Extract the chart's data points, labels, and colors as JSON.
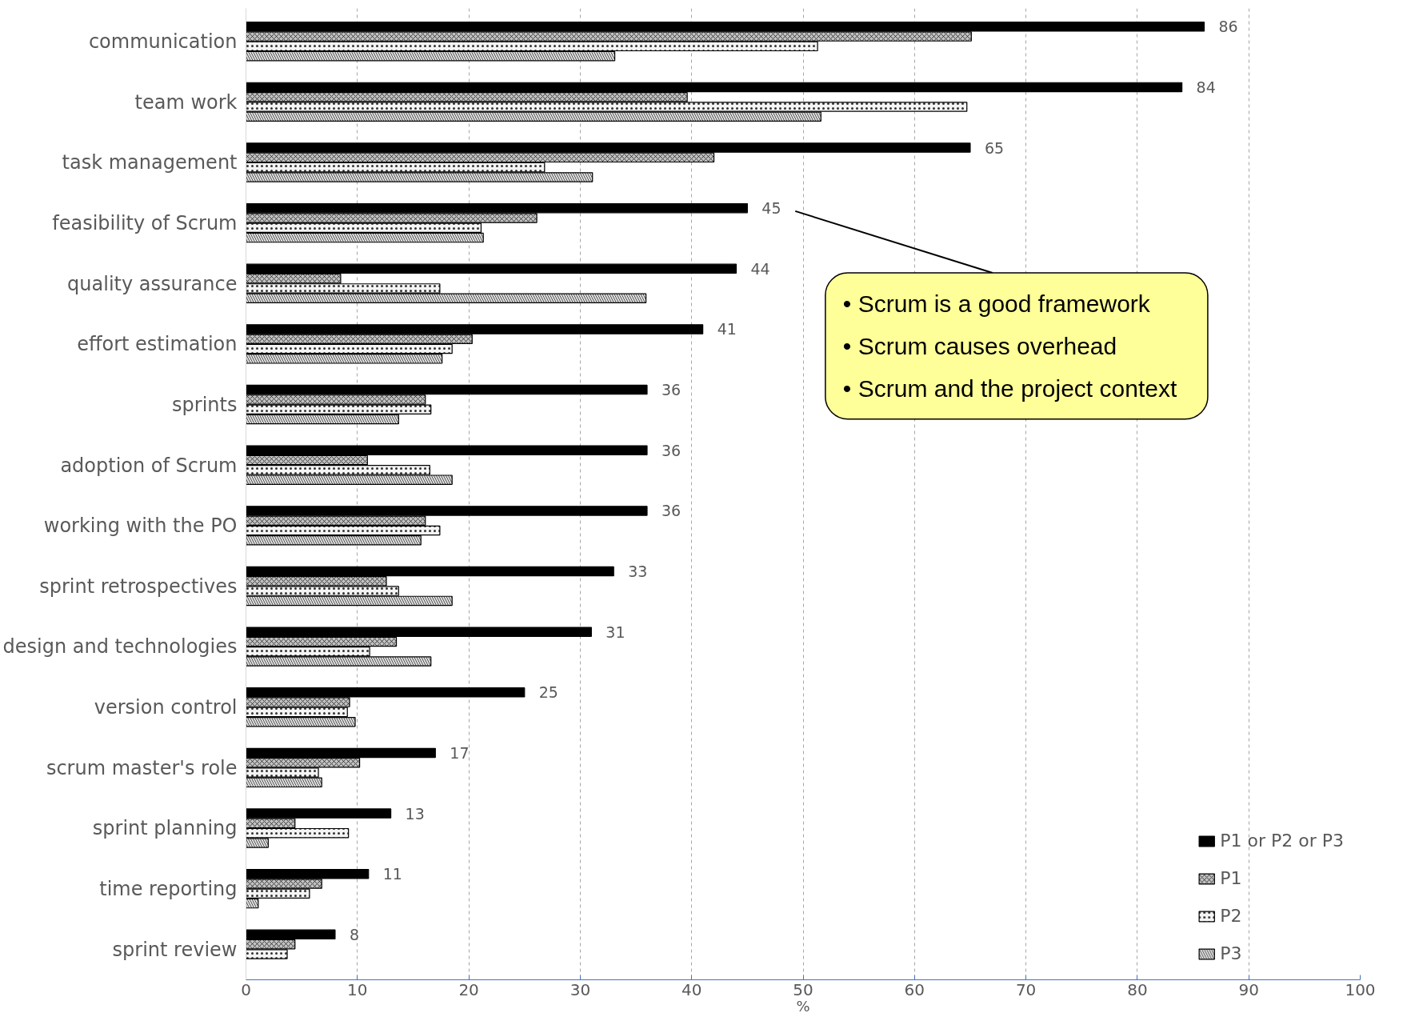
{
  "chart_data": {
    "type": "bar",
    "orientation": "horizontal",
    "xlabel": "%",
    "categories": [
      "communication",
      "team work",
      "task management",
      "feasibility of Scrum",
      "quality assurance",
      "effort estimation",
      "sprints",
      "adoption of Scrum",
      "working with the PO",
      "sprint retrospectives",
      "design and technologies",
      "version control",
      "scrum master's role",
      "sprint planning",
      "time reporting",
      "sprint review"
    ],
    "series": [
      {
        "name": "P1 or P2 or P3",
        "color": "#000000",
        "values": [
          86,
          84,
          65,
          45,
          44,
          41,
          36,
          36,
          36,
          33,
          31,
          25,
          17,
          13,
          11,
          8
        ],
        "value_labels": [
          "86",
          "84",
          "65",
          "45",
          "44",
          "41",
          "36",
          "36",
          "36",
          "33",
          "31",
          "25",
          "17",
          "13",
          "11",
          "8"
        ]
      },
      {
        "name": "P1",
        "color": "#c0c0c0",
        "values": [
          65.1,
          39.6,
          42.0,
          26.1,
          8.5,
          20.3,
          16.1,
          10.9,
          16.1,
          12.6,
          13.5,
          9.3,
          10.2,
          4.4,
          6.8,
          4.4
        ]
      },
      {
        "name": "P2",
        "color": "#f4f4f4",
        "values": [
          51.3,
          64.7,
          26.8,
          21.1,
          17.4,
          18.5,
          16.6,
          16.5,
          17.4,
          13.7,
          11.1,
          9.1,
          6.5,
          9.2,
          5.7,
          3.7
        ]
      },
      {
        "name": "P3",
        "color": "#e0e0e0",
        "values": [
          33.1,
          51.6,
          31.1,
          21.3,
          35.9,
          17.6,
          13.7,
          18.5,
          15.7,
          18.5,
          16.6,
          9.8,
          6.8,
          2.0,
          1.1,
          null
        ]
      }
    ],
    "xlim": [
      0,
      100
    ],
    "xticks": [
      0,
      10,
      20,
      30,
      40,
      50,
      60,
      70,
      80,
      90,
      100
    ],
    "grid": "x",
    "legend": "bottom right",
    "annotations": [
      "•   Scrum is a good framework\n•   Scrum causes overhead\n•   Scrum and the project context"
    ]
  }
}
